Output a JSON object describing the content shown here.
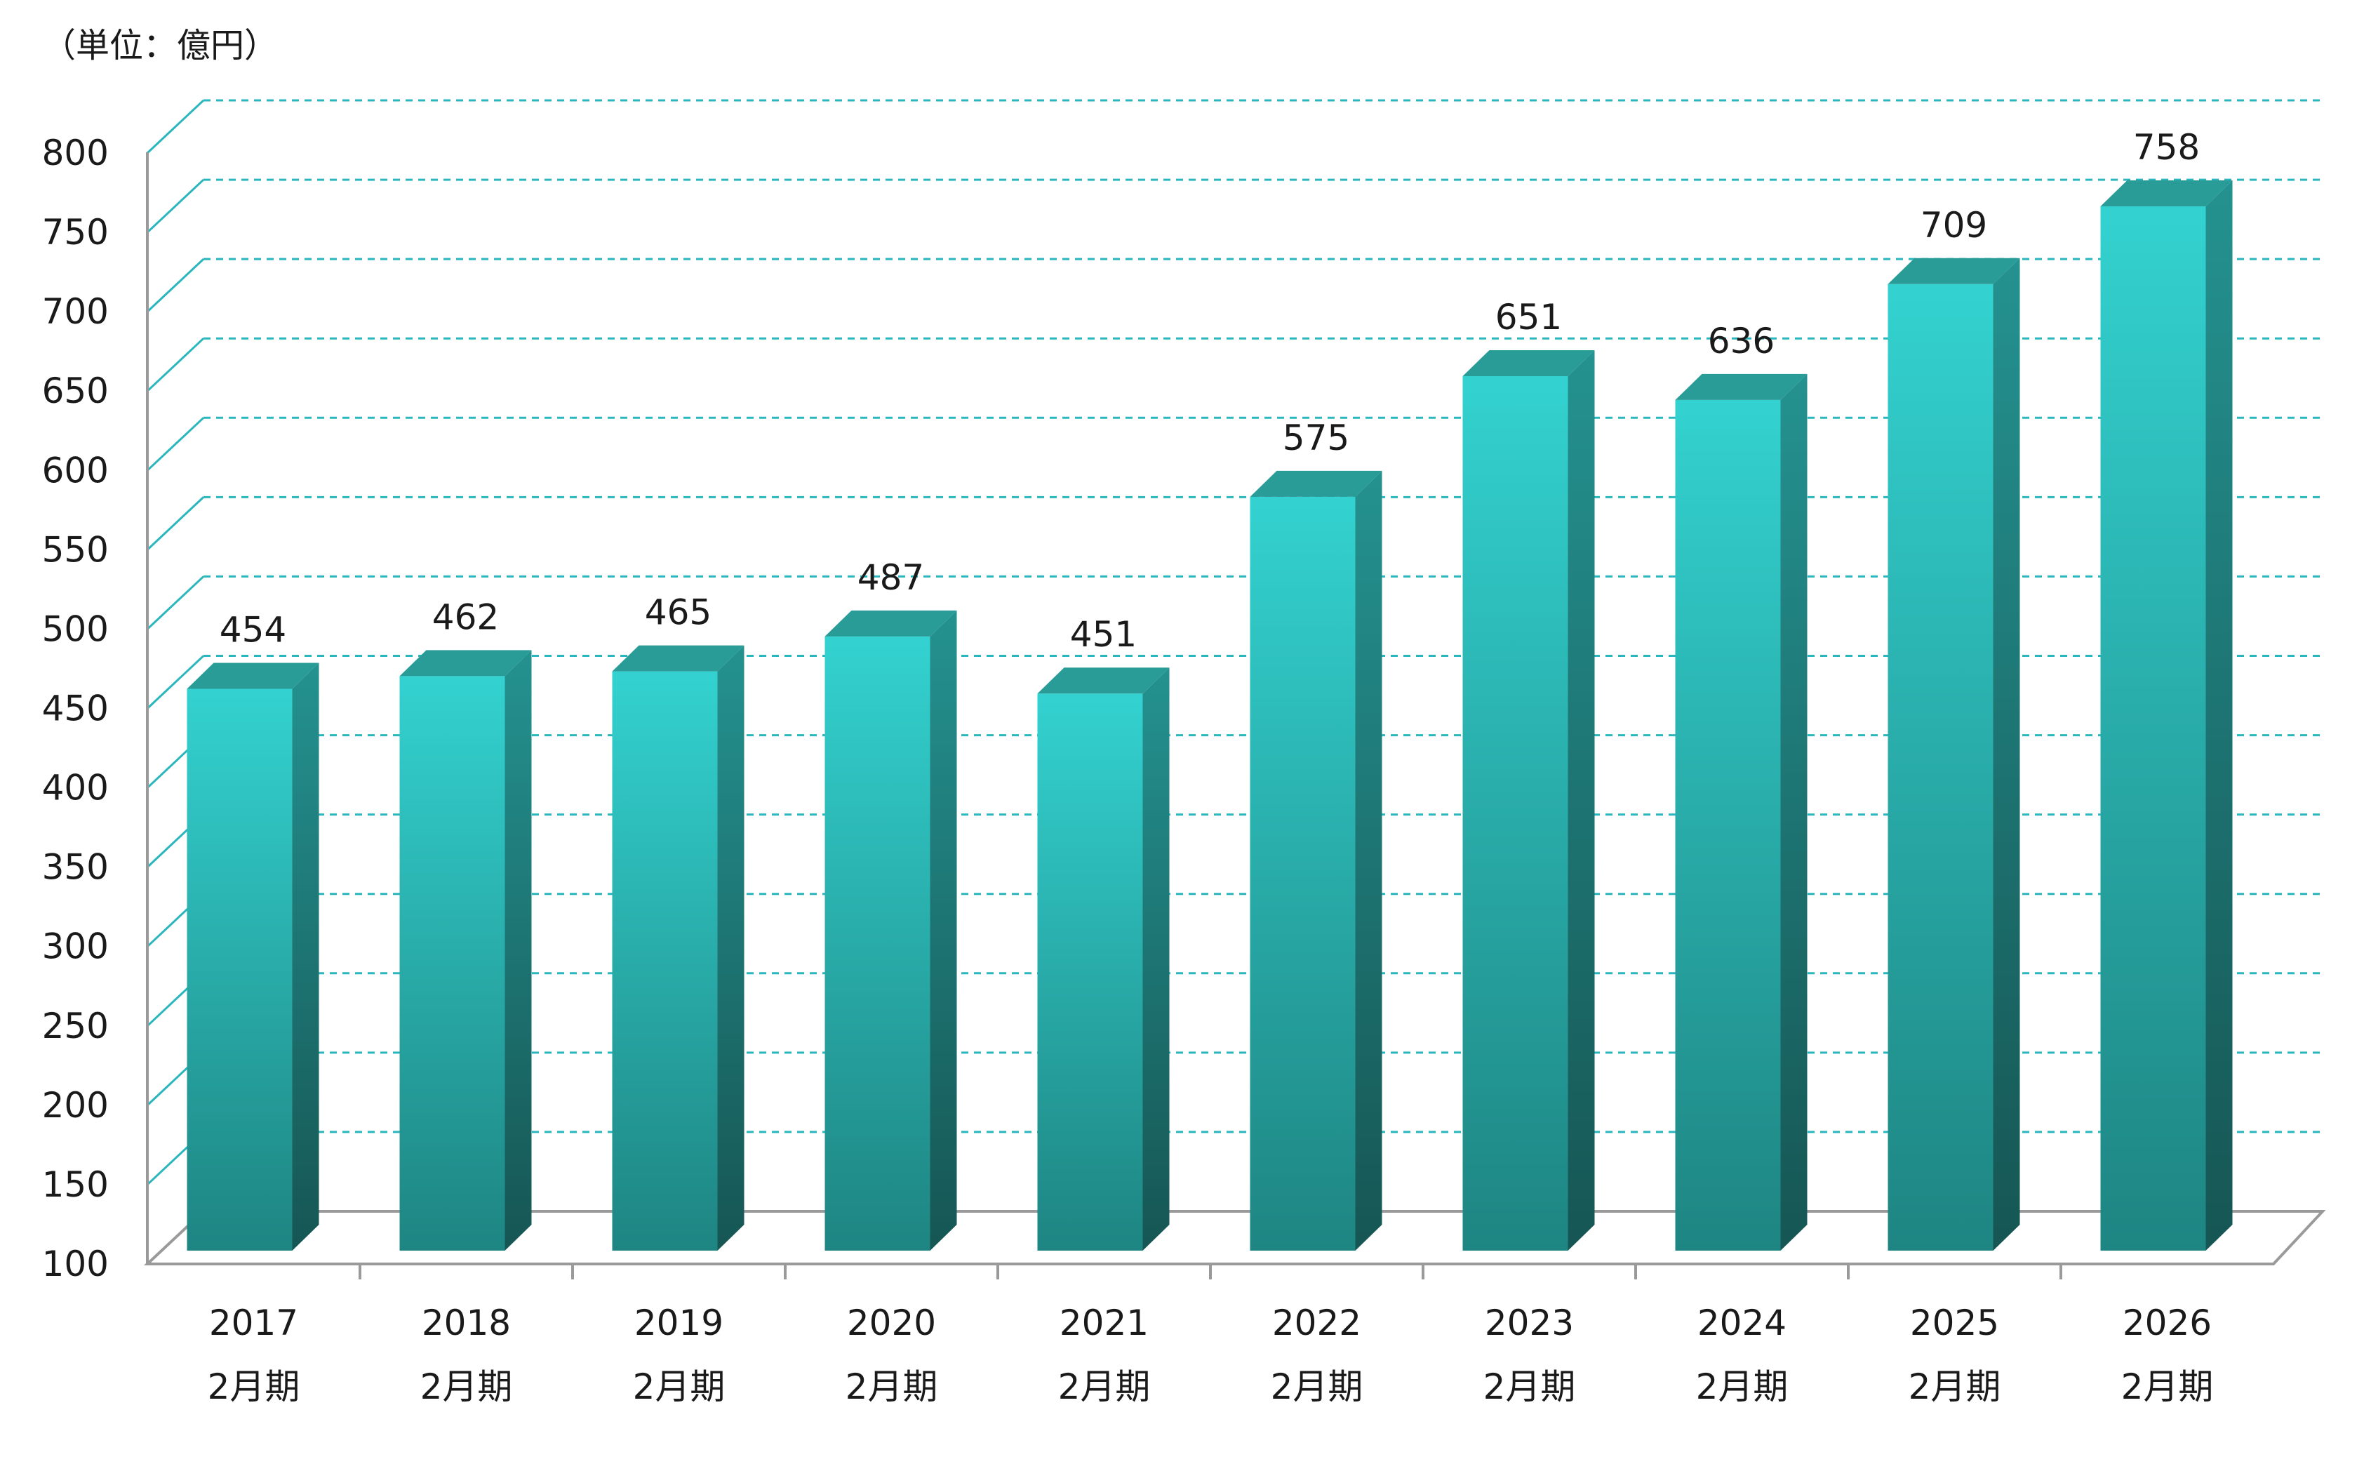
{
  "unit_label": "（単位：億円）",
  "colors": {
    "bar_front_top": "#33d2d0",
    "bar_front_bottom": "#1e8582",
    "bar_top_face": "#2a9c98",
    "bar_side_top": "#249290",
    "bar_side_bottom": "#165654",
    "gridline": "#2ab6bc",
    "axis": "#9a9a9a"
  },
  "chart_data": {
    "type": "bar",
    "title": "",
    "xlabel": "",
    "ylabel": "",
    "ylim": [
      100,
      800
    ],
    "yticks": [
      100,
      150,
      200,
      250,
      300,
      350,
      400,
      450,
      500,
      550,
      600,
      650,
      700,
      750,
      800
    ],
    "grid": true,
    "categories": [
      [
        "2017",
        "2月期"
      ],
      [
        "2018",
        "2月期"
      ],
      [
        "2019",
        "2月期"
      ],
      [
        "2020",
        "2月期"
      ],
      [
        "2021",
        "2月期"
      ],
      [
        "2022",
        "2月期"
      ],
      [
        "2023",
        "2月期"
      ],
      [
        "2024",
        "2月期"
      ],
      [
        "2025",
        "2月期"
      ],
      [
        "2026",
        "2月期"
      ]
    ],
    "values": [
      454,
      462,
      465,
      487,
      451,
      575,
      651,
      636,
      709,
      758
    ]
  }
}
